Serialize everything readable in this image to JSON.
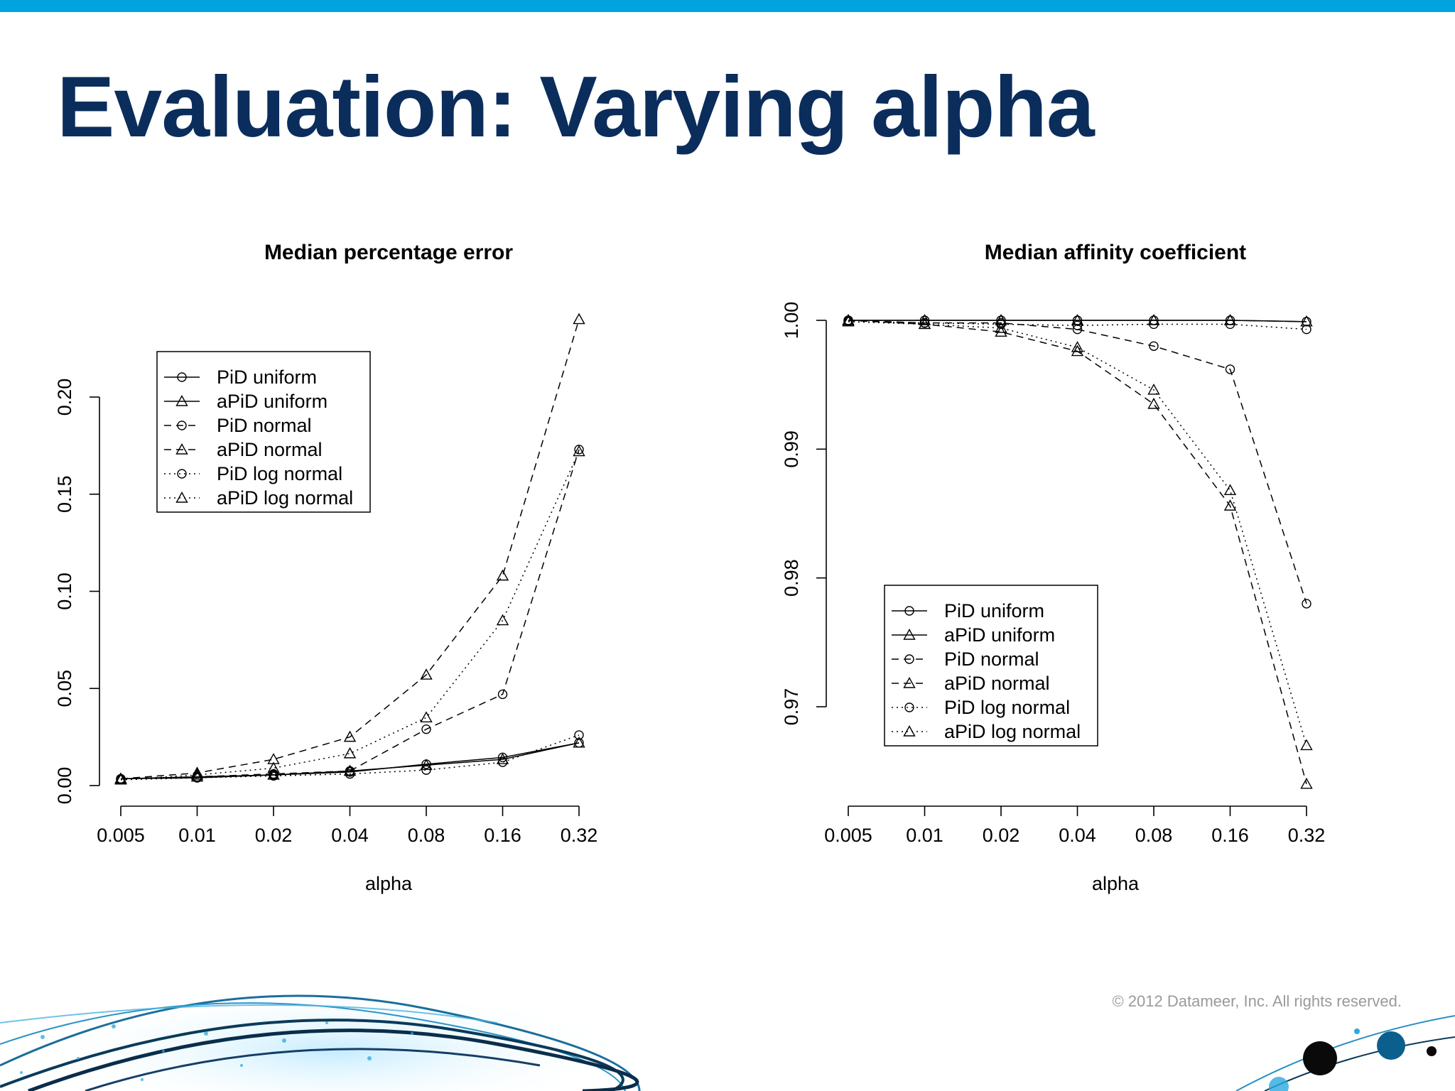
{
  "slide": {
    "title": "Evaluation: Varying alpha",
    "copyright": "© 2012 Datameer, Inc. All rights reserved.",
    "accent_color": "#00a3dd",
    "title_color": "#0a2d5c"
  },
  "chart_data": [
    {
      "type": "line",
      "title": "Median percentage error",
      "xlabel": "alpha",
      "ylabel": "",
      "x": [
        "0.005",
        "0.01",
        "0.02",
        "0.04",
        "0.08",
        "0.16",
        "0.32"
      ],
      "ylim": [
        0,
        0.2
      ],
      "yticks": [
        "0.00",
        "0.05",
        "0.10",
        "0.15",
        "0.20"
      ],
      "grid": false,
      "legend_position": "top-left",
      "series": [
        {
          "name": "PiD uniform",
          "line": "solid",
          "marker": "circle",
          "values": [
            0.0035,
            0.004,
            0.0055,
            0.007,
            0.011,
            0.0145,
            0.022
          ]
        },
        {
          "name": "aPiD uniform",
          "line": "solid",
          "marker": "triangle",
          "values": [
            0.0035,
            0.0045,
            0.0055,
            0.0075,
            0.0105,
            0.0135,
            0.022
          ]
        },
        {
          "name": "PiD normal",
          "line": "dashed",
          "marker": "circle",
          "values": [
            0.0035,
            0.0045,
            0.006,
            0.0075,
            0.029,
            0.047,
            0.173
          ]
        },
        {
          "name": "aPiD normal",
          "line": "dashed",
          "marker": "triangle",
          "values": [
            0.0035,
            0.0065,
            0.0135,
            0.025,
            0.057,
            0.108,
            0.24
          ]
        },
        {
          "name": "PiD log normal",
          "line": "dotted",
          "marker": "circle",
          "values": [
            0.003,
            0.004,
            0.005,
            0.006,
            0.008,
            0.012,
            0.026
          ]
        },
        {
          "name": "aPiD log normal",
          "line": "dotted",
          "marker": "triangle",
          "values": [
            0.003,
            0.0055,
            0.009,
            0.0165,
            0.035,
            0.085,
            0.172
          ]
        }
      ]
    },
    {
      "type": "line",
      "title": "Median affinity coefficient",
      "xlabel": "alpha",
      "ylabel": "",
      "x": [
        "0.005",
        "0.01",
        "0.02",
        "0.04",
        "0.08",
        "0.16",
        "0.32"
      ],
      "ylim": [
        0.97,
        1.0
      ],
      "yticks": [
        "0.97",
        "0.98",
        "0.99",
        "1.00"
      ],
      "grid": false,
      "legend_position": "bottom-left",
      "series": [
        {
          "name": "PiD uniform",
          "line": "solid",
          "marker": "circle",
          "values": [
            1.0,
            1.0,
            1.0,
            1.0,
            1.0,
            1.0,
            0.9999
          ]
        },
        {
          "name": "aPiD uniform",
          "line": "solid",
          "marker": "triangle",
          "values": [
            1.0,
            1.0,
            1.0,
            1.0,
            1.0,
            1.0,
            0.9999
          ]
        },
        {
          "name": "PiD normal",
          "line": "dashed",
          "marker": "circle",
          "values": [
            1.0,
            0.9998,
            0.9998,
            0.9993,
            0.998,
            0.9962,
            0.978
          ]
        },
        {
          "name": "aPiD normal",
          "line": "dashed",
          "marker": "triangle",
          "values": [
            1.0,
            0.9997,
            0.9991,
            0.9976,
            0.9935,
            0.9856,
            0.964
          ]
        },
        {
          "name": "PiD log normal",
          "line": "dotted",
          "marker": "circle",
          "values": [
            0.9999,
            0.9998,
            0.9997,
            0.9996,
            0.9997,
            0.9997,
            0.9993
          ]
        },
        {
          "name": "aPiD log normal",
          "line": "dotted",
          "marker": "triangle",
          "values": [
            0.9999,
            0.9997,
            0.9994,
            0.9979,
            0.9946,
            0.9868,
            0.967
          ]
        }
      ]
    }
  ]
}
